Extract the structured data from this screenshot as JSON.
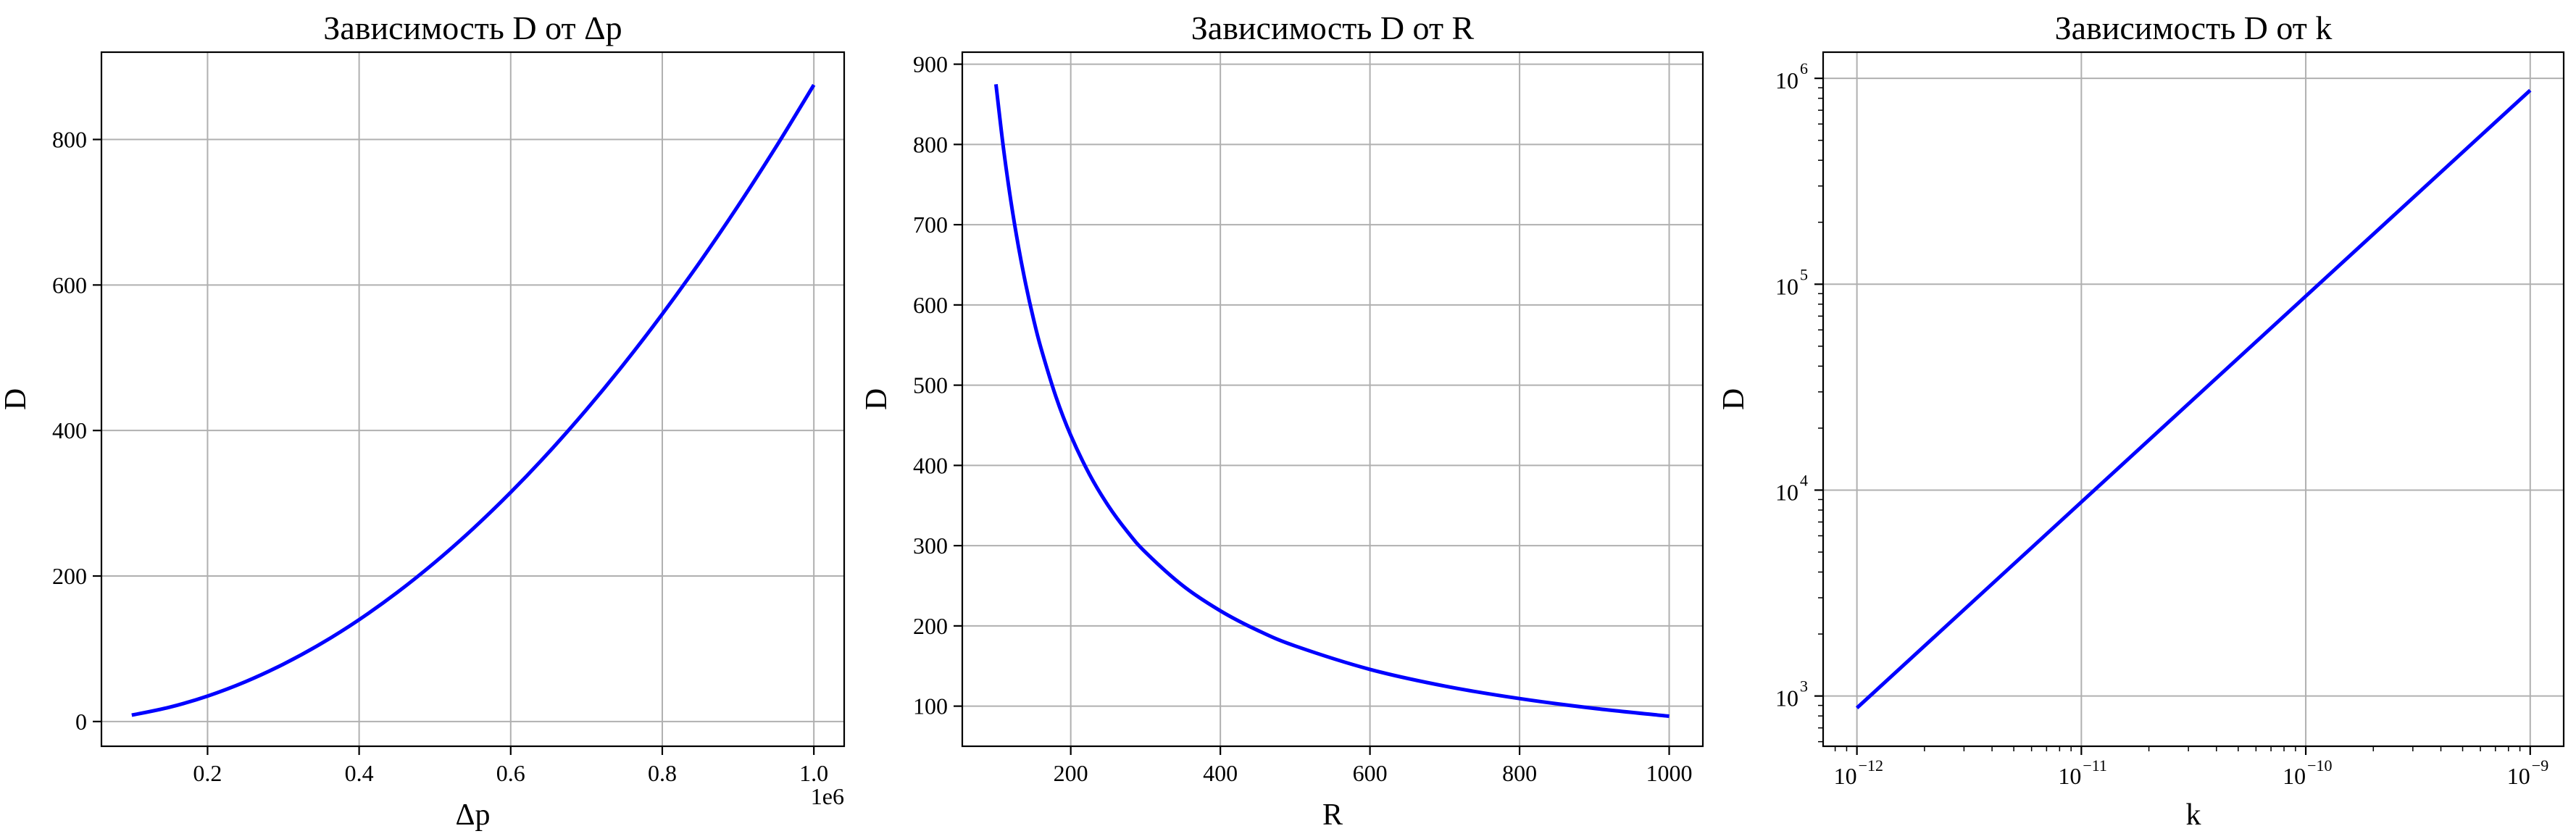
{
  "chart_data": [
    {
      "type": "line",
      "title": "Зависимость D от Δp",
      "xlabel": "Δp",
      "ylabel": "D",
      "x_offset_text": "1e6",
      "xscale": "linear",
      "yscale": "linear",
      "xlim": [
        0.06,
        1.04
      ],
      "ylim": [
        -34,
        920
      ],
      "xticks": [
        0.2,
        0.4,
        0.6,
        0.8,
        1.0
      ],
      "xticklabels": [
        "0.2",
        "0.4",
        "0.6",
        "0.8",
        "1.0"
      ],
      "yticks": [
        0,
        200,
        400,
        600,
        800
      ],
      "yticklabels": [
        "0",
        "200",
        "400",
        "600",
        "800"
      ],
      "grid": true,
      "series": [
        {
          "color": "#0000ff",
          "x": [
            0.1,
            0.15,
            0.2,
            0.25,
            0.3,
            0.35,
            0.4,
            0.45,
            0.5,
            0.55,
            0.6,
            0.65,
            0.7,
            0.75,
            0.8,
            0.85,
            0.9,
            0.95,
            1.0
          ],
          "y": [
            8.75,
            19.7,
            35.0,
            54.7,
            78.8,
            107.2,
            140.0,
            177.2,
            218.8,
            264.7,
            315.0,
            369.7,
            428.8,
            492.2,
            560.0,
            632.2,
            708.8,
            789.7,
            875.0
          ]
        }
      ]
    },
    {
      "type": "line",
      "title": "Зависимость D от R",
      "xlabel": "R",
      "ylabel": "D",
      "xscale": "linear",
      "yscale": "linear",
      "xlim": [
        55,
        1045
      ],
      "ylim": [
        50,
        915
      ],
      "xticks": [
        200,
        400,
        600,
        800,
        1000
      ],
      "xticklabels": [
        "200",
        "400",
        "600",
        "800",
        "1000"
      ],
      "yticks": [
        100,
        200,
        300,
        400,
        500,
        600,
        700,
        800,
        900
      ],
      "yticklabels": [
        "100",
        "200",
        "300",
        "400",
        "500",
        "600",
        "700",
        "800",
        "900"
      ],
      "grid": true,
      "series": [
        {
          "color": "#0000ff",
          "x": [
            100,
            110,
            120,
            130,
            140,
            150,
            160,
            180,
            200,
            225,
            250,
            275,
            300,
            350,
            400,
            450,
            500,
            600,
            700,
            800,
            900,
            1000
          ],
          "y": [
            875.0,
            795.5,
            729.2,
            673.1,
            625.0,
            583.3,
            546.9,
            486.1,
            437.5,
            388.9,
            350.0,
            318.2,
            291.7,
            250.0,
            218.8,
            194.4,
            175.0,
            145.8,
            125.0,
            109.4,
            97.2,
            87.5
          ]
        }
      ]
    },
    {
      "type": "line",
      "title": "Зависимость D от k",
      "xlabel": "k",
      "ylabel": "D",
      "xscale": "log",
      "yscale": "log",
      "xlim": [
        7.07e-13,
        1.41e-09
      ],
      "ylim": [
        570,
        1340000
      ],
      "xticks": [
        1e-12,
        1e-11,
        1e-10,
        1e-09
      ],
      "xticklabels": [
        {
          "base": "10",
          "exp": "−12"
        },
        {
          "base": "10",
          "exp": "−11"
        },
        {
          "base": "10",
          "exp": "−10"
        },
        {
          "base": "10",
          "exp": "−9"
        }
      ],
      "yticks": [
        1000,
        10000,
        100000,
        1000000
      ],
      "yticklabels": [
        {
          "base": "10",
          "exp": "3"
        },
        {
          "base": "10",
          "exp": "4"
        },
        {
          "base": "10",
          "exp": "5"
        },
        {
          "base": "10",
          "exp": "6"
        }
      ],
      "grid": true,
      "series": [
        {
          "color": "#0000ff",
          "x": [
            1e-12,
            1e-09
          ],
          "y": [
            875,
            875000
          ]
        }
      ]
    }
  ]
}
